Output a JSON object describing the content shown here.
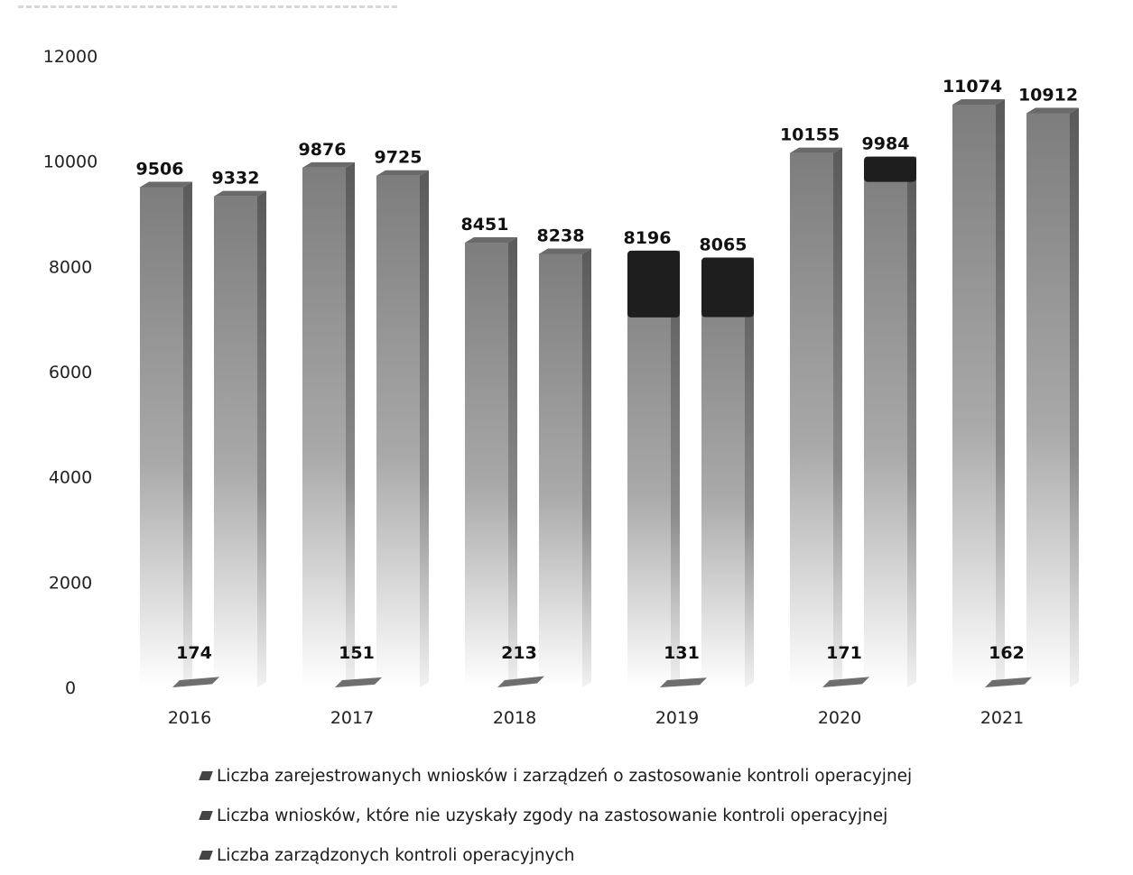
{
  "chart_data": {
    "type": "bar",
    "categories": [
      "2016",
      "2017",
      "2018",
      "2019",
      "2020",
      "2021"
    ],
    "series": [
      {
        "name": "Liczba zarejestrowanych wniosków i zarządzeń o zastosowanie kontroli operacyjnej",
        "values": [
          9506,
          9876,
          8451,
          8196,
          10155,
          11074
        ]
      },
      {
        "name": "Liczba wniosków, które nie uzyskały zgody na zastosowanie kontroli operacyjnej",
        "values": [
          174,
          151,
          213,
          131,
          171,
          162
        ]
      },
      {
        "name": "Liczba zarządzonych kontroli operacyjnych",
        "values": [
          9332,
          9725,
          8238,
          8065,
          9984,
          10912
        ]
      }
    ],
    "value_labels": [
      [
        "9506",
        "9876",
        "8451",
        "8196",
        "10155",
        "11074"
      ],
      [
        "174",
        "151",
        "213",
        "131",
        "171",
        "162"
      ],
      [
        "9332",
        "9725",
        "8238",
        "8065",
        "9984",
        "10912"
      ]
    ],
    "y_ticks": [
      "0",
      "2000",
      "4000",
      "6000",
      "8000",
      "10000",
      "12000"
    ],
    "ylim": [
      0,
      12000
    ],
    "legend_position": "bottom",
    "grid": false,
    "colors": {
      "bar_dark": "#7a7a7a",
      "bar_light": "#e6e6e6",
      "small_bar": "#6e6e6e",
      "dark_patch": "#1e1e1e"
    }
  }
}
